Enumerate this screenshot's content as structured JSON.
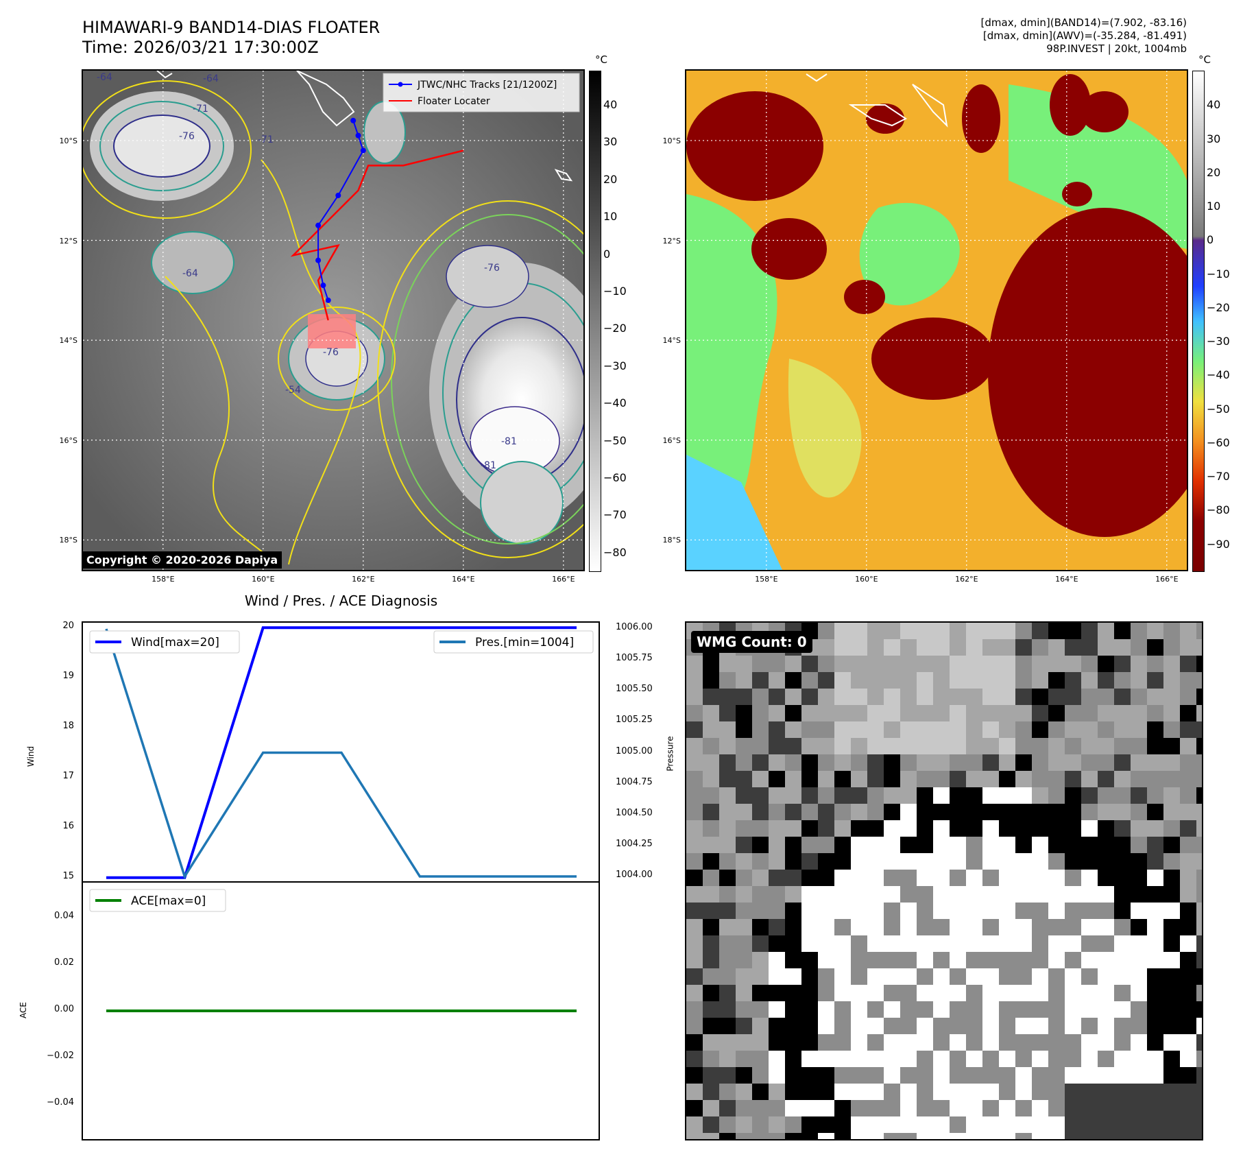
{
  "header": {
    "title_line1": "HIMAWARI-9 BAND14-DIAS FLOATER",
    "title_line2": "Time: 2026/03/21 17:30:00Z",
    "stat_line1": "[dmax, dmin](BAND14)=(7.902, -83.16)",
    "stat_line2": "[dmax, dmin](AWV)=(-35.284, -81.491)",
    "stat_line3": "98P.INVEST | 20kt, 1004mb"
  },
  "map": {
    "lat_labels": [
      "10°S",
      "12°S",
      "14°S",
      "16°S",
      "18°S"
    ],
    "lon_labels": [
      "158°E",
      "160°E",
      "162°E",
      "164°E",
      "166°E"
    ],
    "lat_values": [
      -10,
      -12,
      -14,
      -16,
      -18
    ],
    "lon_values": [
      158,
      160,
      162,
      164,
      166
    ],
    "lat_range": [
      -18.6,
      -8.6
    ],
    "lon_range": [
      156.4,
      166.4
    ],
    "legend": {
      "track_label": "JTWC/NHC Tracks [21/1200Z]",
      "locater_label": "Floater Locater"
    },
    "copyright": "Copyright © 2020-2026 Dapiya",
    "contour_labels": [
      "-64",
      "-64",
      "-71",
      "-76",
      "-64",
      "-76",
      "-81",
      "-81",
      "-76",
      "-71",
      "-54"
    ],
    "track_points": [
      [
        161.8,
        -9.6
      ],
      [
        161.9,
        -9.9
      ],
      [
        162.0,
        -10.2
      ],
      [
        161.5,
        -11.1
      ],
      [
        161.1,
        -11.7
      ],
      [
        161.1,
        -12.4
      ],
      [
        161.2,
        -12.9
      ],
      [
        161.3,
        -13.2
      ]
    ],
    "locater_points": [
      [
        161.3,
        -13.6
      ],
      [
        161.1,
        -12.8
      ],
      [
        161.5,
        -12.1
      ],
      [
        160.6,
        -12.3
      ],
      [
        161.5,
        -11.4
      ],
      [
        161.9,
        -11.0
      ],
      [
        162.1,
        -10.5
      ],
      [
        162.8,
        -10.5
      ],
      [
        164.0,
        -10.2
      ]
    ],
    "colors": {
      "track": "#0000ff",
      "locater": "#ff0000",
      "floater_box": "#ff8080"
    }
  },
  "colorbars": {
    "unit": "°C",
    "band14_ticks": [
      "40",
      "30",
      "20",
      "10",
      "0",
      "−10",
      "−20",
      "−30",
      "−40",
      "−50",
      "−60",
      "−70",
      "−80"
    ],
    "band14_values": [
      40,
      30,
      20,
      10,
      0,
      -10,
      -20,
      -30,
      -40,
      -50,
      -60,
      -70,
      -80
    ],
    "band14_range": [
      -85,
      49
    ],
    "awv_ticks": [
      "40",
      "30",
      "20",
      "10",
      "0",
      "−10",
      "−20",
      "−30",
      "−40",
      "−50",
      "−60",
      "−70",
      "−80",
      "−90"
    ],
    "awv_values": [
      40,
      30,
      20,
      10,
      0,
      -10,
      -20,
      -30,
      -40,
      -50,
      -60,
      -70,
      -80,
      -90
    ],
    "awv_range": [
      -98,
      50
    ]
  },
  "diagnosis": {
    "title": "Wind / Pres. / ACE Diagnosis",
    "wmg_label": "WMG Count: 0"
  },
  "chart_data": [
    {
      "type": "line",
      "x": [
        0,
        1,
        2,
        3,
        4,
        5,
        6
      ],
      "series": [
        {
          "name": "Wind[max=20]",
          "axis": "left",
          "color": "#0000ff",
          "values": [
            15,
            15,
            20,
            20,
            20,
            20,
            20
          ]
        },
        {
          "name": "Pres.[min=1004]",
          "axis": "right",
          "color": "#1f77b4",
          "values": [
            1006.0,
            1004.0,
            1005.0,
            1005.0,
            1004.0,
            1004.0,
            1004.0
          ]
        }
      ],
      "ylabel": "Wind",
      "ylabel_right": "Pressure",
      "ylim": [
        14.9,
        20.1
      ],
      "ylim_right": [
        1003.95,
        1006.05
      ],
      "yticks": [
        20,
        19,
        18,
        17,
        16,
        15
      ],
      "yticks_right": [
        "1006.00",
        "1005.75",
        "1005.50",
        "1005.25",
        "1005.00",
        "1004.75",
        "1004.50",
        "1004.25",
        "1004.00"
      ],
      "yticks_right_values": [
        1006.0,
        1005.75,
        1005.5,
        1005.25,
        1005.0,
        1004.75,
        1004.5,
        1004.25,
        1004.0
      ]
    },
    {
      "type": "line",
      "x": [
        0,
        1,
        2,
        3,
        4,
        5,
        6
      ],
      "series": [
        {
          "name": "ACE[max=0]",
          "color": "#008000",
          "values": [
            0,
            0,
            0,
            0,
            0,
            0,
            0
          ]
        }
      ],
      "ylabel": "ACE",
      "ylim": [
        -0.055,
        0.055
      ],
      "yticks": [
        "0.04",
        "0.02",
        "0.00",
        "−0.02",
        "−0.04"
      ],
      "yticks_values": [
        0.04,
        0.02,
        0.0,
        -0.02,
        -0.04
      ]
    }
  ]
}
